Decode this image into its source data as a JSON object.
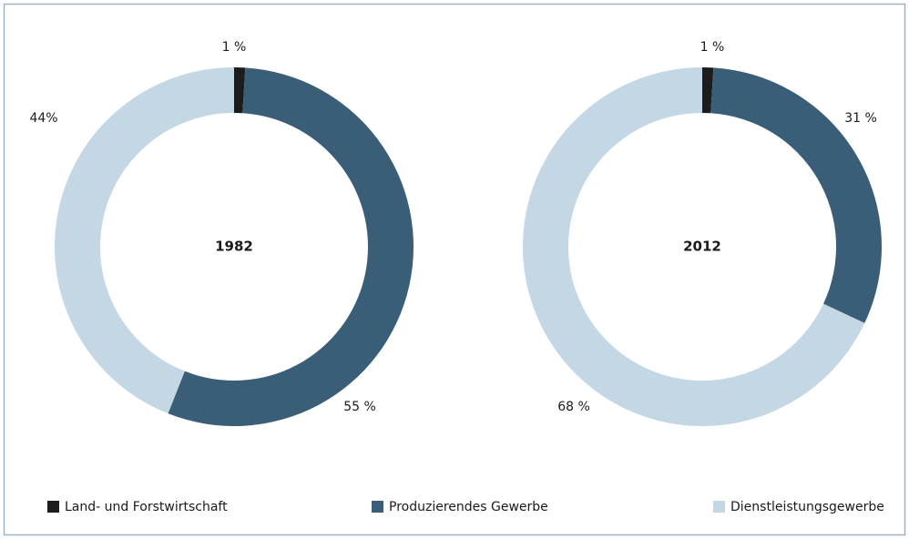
{
  "chart_data": [
    {
      "type": "donut",
      "title": "1982",
      "values": [
        1,
        55,
        44
      ],
      "value_labels": [
        "1 %",
        "55 %",
        "44%"
      ]
    },
    {
      "type": "donut",
      "title": "2012",
      "values": [
        1,
        31,
        68
      ],
      "value_labels": [
        "1 %",
        "31 %",
        "68 %"
      ]
    }
  ],
  "legend": {
    "categories": [
      "Land- und Forstwirtschaft",
      "Produzierendes Gewerbe",
      "Dienstleistungsgewerbe"
    ],
    "colors": [
      "#1c1c1c",
      "#3a5e78",
      "#c3d7e5"
    ]
  }
}
